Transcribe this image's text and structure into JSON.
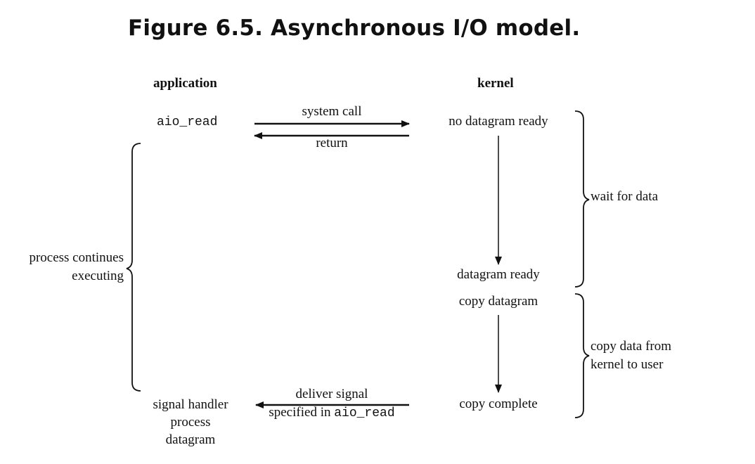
{
  "title": "Figure 6.5. Asynchronous I/O model.",
  "columns": {
    "application": "application",
    "kernel": "kernel"
  },
  "application": {
    "call": "aio_read",
    "continues_line1": "process continues",
    "continues_line2": "executing",
    "handler_line1": "signal handler",
    "handler_line2": "process",
    "handler_line3": "datagram"
  },
  "arrows": {
    "system_call": "system call",
    "return": "return",
    "deliver_signal_line1": "deliver signal",
    "deliver_signal_prefix": "specified in ",
    "deliver_signal_func": "aio_read"
  },
  "kernel": {
    "no_datagram": "no datagram ready",
    "datagram_ready": "datagram ready",
    "copy_datagram": "copy datagram",
    "copy_complete": "copy complete"
  },
  "phases": {
    "wait": "wait for data",
    "copy_line1": "copy data from",
    "copy_line2": "kernel to user"
  }
}
